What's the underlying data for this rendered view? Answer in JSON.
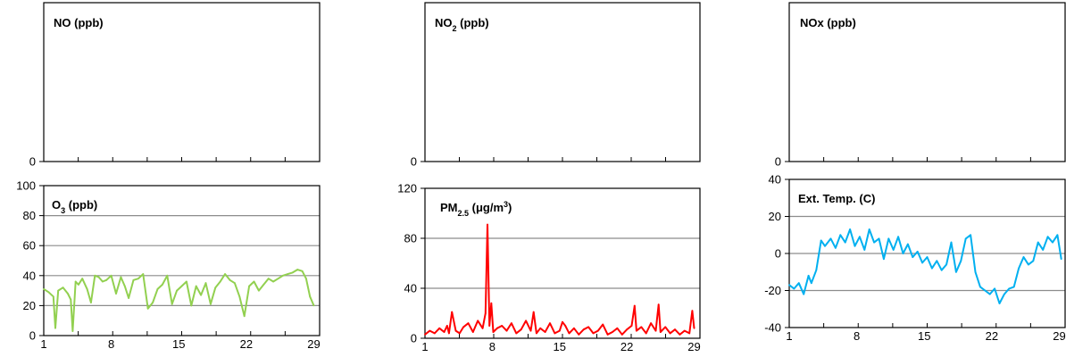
{
  "chart_data": [
    {
      "type": "line",
      "title": "NO (ppb)",
      "title_parts": [
        {
          "t": "NO (ppb)"
        }
      ],
      "x": [],
      "series": [],
      "ylim": [
        0,
        1
      ],
      "yticks": [
        "0"
      ],
      "xticks": [],
      "grid": false,
      "color": "#000000"
    },
    {
      "type": "line",
      "title": "NO2 (ppb)",
      "title_parts": [
        {
          "t": "NO"
        },
        {
          "t": "2",
          "sub": true
        },
        {
          "t": " (ppb)"
        }
      ],
      "x": [],
      "series": [],
      "ylim": [
        0,
        1
      ],
      "yticks": [
        "0"
      ],
      "xticks": [],
      "grid": false,
      "color": "#000000"
    },
    {
      "type": "line",
      "title": "NOx (ppb)",
      "title_parts": [
        {
          "t": "NOx (ppb)"
        }
      ],
      "x": [],
      "series": [],
      "ylim": [
        0,
        1
      ],
      "yticks": [
        "0"
      ],
      "xticks": [],
      "grid": false,
      "color": "#000000"
    },
    {
      "type": "line",
      "title": "O3 (ppb)",
      "title_parts": [
        {
          "t": "O"
        },
        {
          "t": "3",
          "sub": true
        },
        {
          "t": " (ppb)"
        }
      ],
      "ylim": [
        0,
        100
      ],
      "yticks": [
        "0",
        "20",
        "40",
        "60",
        "80",
        "100"
      ],
      "xlim": [
        1,
        29.6
      ],
      "xticks": [
        "1",
        "8",
        "15",
        "22",
        "29"
      ],
      "grid": true,
      "color": "#92D050",
      "x": [
        1,
        1.5,
        2,
        2.2,
        2.5,
        3,
        3.5,
        3.8,
        4,
        4.3,
        4.6,
        5,
        5.5,
        5.9,
        6.3,
        6.7,
        7.1,
        7.5,
        8,
        8.5,
        9,
        9.4,
        9.8,
        10.3,
        10.8,
        11.3,
        11.8,
        12.3,
        12.8,
        13.3,
        13.8,
        14.3,
        14.8,
        15.3,
        15.8,
        16.3,
        16.8,
        17.3,
        17.8,
        18.3,
        18.8,
        19.3,
        19.8,
        20.3,
        20.8,
        21.3,
        21.8,
        22.3,
        22.8,
        23.3,
        23.8,
        24.3,
        24.8,
        25.3,
        25.8,
        26.3,
        26.8,
        27.3,
        27.8,
        28.2,
        28.6,
        29
      ],
      "series": [
        {
          "values": [
            31,
            29,
            26,
            5,
            30,
            32,
            28,
            24,
            3,
            36,
            34,
            38,
            31,
            22,
            40,
            39,
            36,
            37,
            40,
            28,
            39,
            33,
            25,
            37,
            38,
            41,
            18,
            22,
            31,
            34,
            40,
            21,
            30,
            33,
            36,
            20,
            33,
            27,
            35,
            21,
            32,
            36,
            41,
            37,
            35,
            26,
            13,
            33,
            36,
            30,
            34,
            38,
            36,
            38,
            40,
            41,
            42,
            44,
            43,
            38,
            26,
            20
          ]
        }
      ]
    },
    {
      "type": "line",
      "title": "PM2.5 (μg/m3)",
      "title_parts": [
        {
          "t": "PM"
        },
        {
          "t": "2.5",
          "sub": true
        },
        {
          "t": " (μg/m"
        },
        {
          "t": "3",
          "sup": true
        },
        {
          "t": ")"
        }
      ],
      "ylim": [
        0,
        120
      ],
      "yticks": [
        "0",
        "40",
        "80",
        "120"
      ],
      "xlim": [
        1,
        29.6
      ],
      "xticks": [
        "1",
        "8",
        "15",
        "22",
        "29"
      ],
      "grid": true,
      "color": "#FF0000",
      "x": [
        1,
        1.5,
        2,
        2.5,
        3,
        3.3,
        3.5,
        3.8,
        4.2,
        4.6,
        5,
        5.5,
        6,
        6.5,
        7,
        7.3,
        7.5,
        7.7,
        7.9,
        8.1,
        8.5,
        9,
        9.5,
        10,
        10.5,
        11,
        11.5,
        12,
        12.3,
        12.6,
        13,
        13.5,
        14,
        14.5,
        15,
        15.3,
        15.6,
        16,
        16.5,
        17,
        17.5,
        18,
        18.5,
        19,
        19.5,
        20,
        20.5,
        21,
        21.5,
        22,
        22.5,
        22.8,
        23,
        23.5,
        24,
        24.5,
        25,
        25.3,
        25.5,
        26,
        26.5,
        27,
        27.5,
        28,
        28.5,
        28.8,
        29
      ],
      "series": [
        {
          "values": [
            3,
            6,
            4,
            8,
            5,
            10,
            4,
            21,
            6,
            4,
            9,
            12,
            5,
            14,
            8,
            20,
            91,
            10,
            28,
            5,
            8,
            10,
            6,
            12,
            4,
            7,
            14,
            6,
            21,
            4,
            8,
            5,
            12,
            4,
            6,
            13,
            10,
            4,
            8,
            3,
            7,
            9,
            4,
            6,
            11,
            3,
            5,
            8,
            3,
            7,
            10,
            26,
            6,
            9,
            4,
            12,
            6,
            27,
            5,
            9,
            4,
            7,
            3,
            6,
            4,
            22,
            8
          ]
        }
      ]
    },
    {
      "type": "line",
      "title": "Ext. Temp. (C)",
      "title_parts": [
        {
          "t": "Ext. Temp. (C)"
        }
      ],
      "ylim": [
        -40,
        40
      ],
      "yticks": [
        "-40",
        "-20",
        "0",
        "20",
        "40"
      ],
      "xlim": [
        1,
        29.6
      ],
      "xticks": [
        "1",
        "8",
        "15",
        "22",
        "29"
      ],
      "grid": true,
      "color": "#00B0F0",
      "x": [
        1,
        1.5,
        2,
        2.5,
        3,
        3.3,
        3.8,
        4.3,
        4.7,
        5.3,
        5.8,
        6.3,
        6.8,
        7.3,
        7.8,
        8.3,
        8.8,
        9.3,
        9.8,
        10.3,
        10.8,
        11.3,
        11.8,
        12.3,
        12.8,
        13.3,
        13.8,
        14.3,
        14.8,
        15.3,
        15.8,
        16.3,
        16.8,
        17.3,
        17.8,
        18.3,
        18.8,
        19.3,
        19.8,
        20.3,
        20.8,
        21.3,
        21.8,
        22.3,
        22.8,
        23.3,
        23.8,
        24.3,
        24.8,
        25.3,
        25.8,
        26.3,
        26.8,
        27.3,
        27.8,
        28.3,
        28.8,
        29.2
      ],
      "series": [
        {
          "values": [
            -17,
            -19,
            -16,
            -22,
            -12,
            -16,
            -9,
            7,
            4,
            8,
            3,
            10,
            6,
            13,
            4,
            9,
            2,
            13,
            6,
            8,
            -3,
            8,
            2,
            9,
            0,
            5,
            -2,
            1,
            -5,
            -2,
            -8,
            -4,
            -9,
            -6,
            6,
            -10,
            -4,
            8,
            10,
            -10,
            -18,
            -20,
            -22,
            -19,
            -27,
            -22,
            -19,
            -18,
            -8,
            -2,
            -6,
            -4,
            6,
            2,
            9,
            6,
            10,
            -3
          ]
        }
      ]
    }
  ]
}
